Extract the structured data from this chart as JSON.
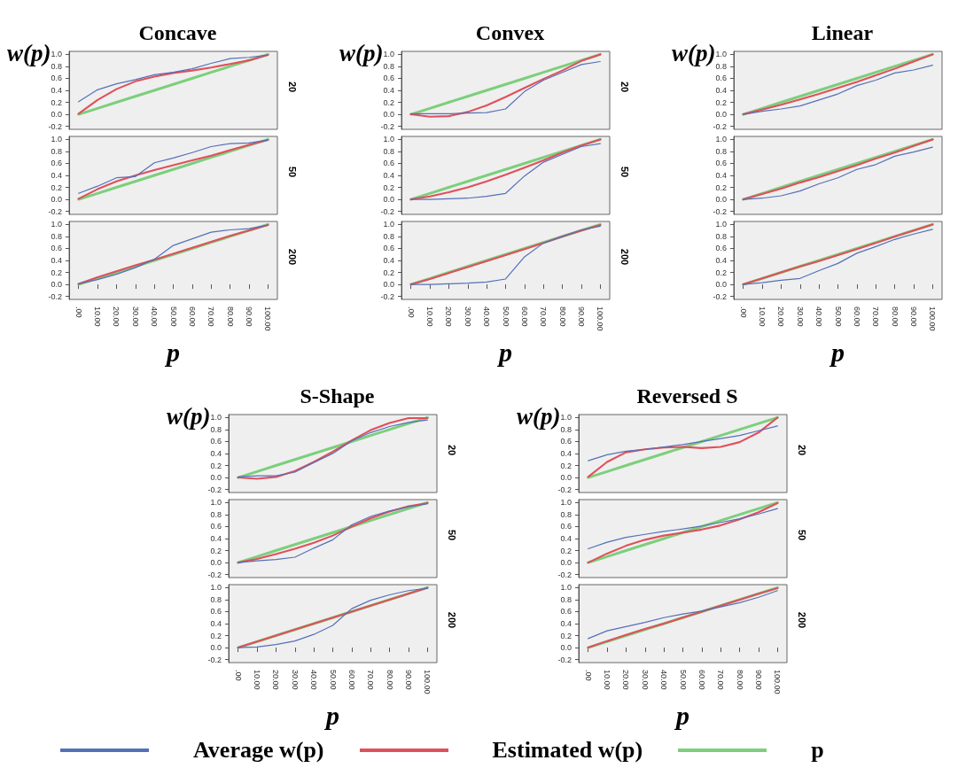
{
  "chart_data": [
    {
      "type": "line",
      "title": "Concave",
      "ylabel": "w(p)",
      "y2label": "20",
      "tick_labels": "y",
      "categories": [
        ".00",
        "10.00",
        "20.00",
        "30.00",
        "40.00",
        "50.00",
        "60.00",
        "70.00",
        "80.00",
        "90.00",
        "100.00"
      ],
      "ylim": [
        -0.25,
        1.05
      ],
      "yticks": [
        {
          "value": -0.2,
          "label": "-0.2"
        },
        {
          "value": 0,
          "label": "0.0"
        },
        0.2,
        0.4,
        0.6,
        0.8,
        {
          "value": 1,
          "label": "1.0"
        }
      ],
      "grid": false,
      "series": [
        {
          "color": "#5470b8",
          "values": [
            0.21,
            0.41,
            0.51,
            0.58,
            0.66,
            0.7,
            0.76,
            0.85,
            0.93,
            0.95,
            0.99
          ]
        },
        {
          "color": "#e0505c",
          "values": [
            0.01,
            0.24,
            0.42,
            0.55,
            0.63,
            0.69,
            0.73,
            0.78,
            0.84,
            0.9,
            0.99
          ]
        },
        {
          "color": "#7ccf7c",
          "values": [
            0,
            0.1,
            0.2,
            0.3,
            0.4,
            0.5,
            0.6,
            0.7,
            0.8,
            0.9,
            1.0
          ]
        }
      ]
    },
    {
      "type": "line",
      "y2label": "50",
      "tick_labels": "y",
      "categories": [
        ".00",
        "10.00",
        "20.00",
        "30.00",
        "40.00",
        "50.00",
        "60.00",
        "70.00",
        "80.00",
        "90.00",
        "100.00"
      ],
      "ylim": [
        -0.25,
        1.05
      ],
      "yticks": [
        {
          "value": -0.2,
          "label": "-0.2"
        },
        {
          "value": 0,
          "label": "0.0"
        },
        0.2,
        0.4,
        0.6,
        0.8,
        {
          "value": 1,
          "label": "1.0"
        }
      ],
      "grid": false,
      "series": [
        {
          "color": "#5470b8",
          "values": [
            0.1,
            0.22,
            0.36,
            0.38,
            0.61,
            0.69,
            0.78,
            0.88,
            0.93,
            0.94,
            0.99
          ]
        },
        {
          "color": "#e0505c",
          "values": [
            0.01,
            0.17,
            0.3,
            0.4,
            0.49,
            0.57,
            0.65,
            0.73,
            0.82,
            0.91,
            0.99
          ]
        },
        {
          "color": "#7ccf7c",
          "values": [
            0,
            0.1,
            0.2,
            0.3,
            0.4,
            0.5,
            0.6,
            0.7,
            0.8,
            0.9,
            1.0
          ]
        }
      ]
    },
    {
      "type": "line",
      "xlabel": "p",
      "y2label": "200",
      "categories": [
        ".00",
        "10.00",
        "20.00",
        "30.00",
        "40.00",
        "50.00",
        "60.00",
        "70.00",
        "80.00",
        "90.00",
        "100.00"
      ],
      "ylim": [
        -0.25,
        1.05
      ],
      "yticks": [
        {
          "value": -0.2,
          "label": "-0.2"
        },
        {
          "value": 0,
          "label": "0.0"
        },
        0.2,
        0.4,
        0.6,
        0.8,
        {
          "value": 1,
          "label": "1.0"
        }
      ],
      "grid": false,
      "series": [
        {
          "color": "#5470b8",
          "values": [
            0.01,
            0.08,
            0.17,
            0.28,
            0.42,
            0.65,
            0.76,
            0.87,
            0.91,
            0.93,
            0.99
          ]
        },
        {
          "color": "#e0505c",
          "values": [
            0.01,
            0.12,
            0.22,
            0.32,
            0.41,
            0.51,
            0.61,
            0.71,
            0.81,
            0.9,
            0.99
          ]
        },
        {
          "color": "#7ccf7c",
          "values": [
            0,
            0.1,
            0.2,
            0.3,
            0.4,
            0.5,
            0.6,
            0.7,
            0.8,
            0.9,
            1.0
          ]
        }
      ]
    },
    {
      "type": "line",
      "title": "Convex",
      "ylabel": "w(p)",
      "y2label": "20",
      "tick_labels": "y",
      "categories": [
        ".00",
        "10.00",
        "20.00",
        "30.00",
        "40.00",
        "50.00",
        "60.00",
        "70.00",
        "80.00",
        "90.00",
        "100.00"
      ],
      "ylim": [
        -0.25,
        1.05
      ],
      "yticks": [
        {
          "value": -0.2,
          "label": "-0.2"
        },
        {
          "value": 0,
          "label": "0.0"
        },
        0.2,
        0.4,
        0.6,
        0.8,
        {
          "value": 1,
          "label": "1.0"
        }
      ],
      "grid": false,
      "series": [
        {
          "color": "#5470b8",
          "values": [
            0.01,
            0.01,
            0.01,
            0.02,
            0.03,
            0.09,
            0.38,
            0.57,
            0.7,
            0.83,
            0.88
          ]
        },
        {
          "color": "#e0505c",
          "values": [
            0.0,
            -0.04,
            -0.03,
            0.04,
            0.15,
            0.29,
            0.44,
            0.59,
            0.73,
            0.89,
            1.0
          ]
        },
        {
          "color": "#7ccf7c",
          "values": [
            0,
            0.1,
            0.2,
            0.3,
            0.4,
            0.5,
            0.6,
            0.7,
            0.8,
            0.9,
            1.0
          ]
        }
      ]
    },
    {
      "type": "line",
      "y2label": "50",
      "tick_labels": "y",
      "categories": [
        ".00",
        "10.00",
        "20.00",
        "30.00",
        "40.00",
        "50.00",
        "60.00",
        "70.00",
        "80.00",
        "90.00",
        "100.00"
      ],
      "ylim": [
        -0.25,
        1.05
      ],
      "yticks": [
        {
          "value": -0.2,
          "label": "-0.2"
        },
        {
          "value": 0,
          "label": "0.0"
        },
        0.2,
        0.4,
        0.6,
        0.8,
        {
          "value": 1,
          "label": "1.0"
        }
      ],
      "grid": false,
      "series": [
        {
          "color": "#5470b8",
          "values": [
            0.0,
            0.0,
            0.01,
            0.02,
            0.05,
            0.1,
            0.39,
            0.62,
            0.75,
            0.88,
            0.93
          ]
        },
        {
          "color": "#e0505c",
          "values": [
            0.0,
            0.05,
            0.12,
            0.2,
            0.3,
            0.41,
            0.53,
            0.65,
            0.78,
            0.9,
            1.0
          ]
        },
        {
          "color": "#7ccf7c",
          "values": [
            0,
            0.1,
            0.2,
            0.3,
            0.4,
            0.5,
            0.6,
            0.7,
            0.8,
            0.9,
            1.0
          ]
        }
      ]
    },
    {
      "type": "line",
      "xlabel": "p",
      "y2label": "200",
      "categories": [
        ".00",
        "10.00",
        "20.00",
        "30.00",
        "40.00",
        "50.00",
        "60.00",
        "70.00",
        "80.00",
        "90.00",
        "100.00"
      ],
      "ylim": [
        -0.25,
        1.05
      ],
      "yticks": [
        {
          "value": -0.2,
          "label": "-0.2"
        },
        {
          "value": 0,
          "label": "0.0"
        },
        0.2,
        0.4,
        0.6,
        0.8,
        {
          "value": 1,
          "label": "1.0"
        }
      ],
      "grid": false,
      "series": [
        {
          "color": "#5470b8",
          "values": [
            0.0,
            0.0,
            0.01,
            0.02,
            0.04,
            0.09,
            0.46,
            0.69,
            0.8,
            0.91,
            0.97
          ]
        },
        {
          "color": "#e0505c",
          "values": [
            0.0,
            0.09,
            0.19,
            0.29,
            0.39,
            0.49,
            0.59,
            0.69,
            0.8,
            0.9,
            0.99
          ]
        },
        {
          "color": "#7ccf7c",
          "values": [
            0,
            0.1,
            0.2,
            0.3,
            0.4,
            0.5,
            0.6,
            0.7,
            0.8,
            0.9,
            1.0
          ]
        }
      ]
    },
    {
      "type": "line",
      "title": "Linear",
      "ylabel": "w(p)",
      "tick_labels": "y",
      "categories": [
        ".00",
        "10.00",
        "20.00",
        "30.00",
        "40.00",
        "50.00",
        "60.00",
        "70.00",
        "80.00",
        "90.00",
        "100.00"
      ],
      "ylim": [
        -0.25,
        1.05
      ],
      "yticks": [
        {
          "value": -0.2,
          "label": "-0.2"
        },
        {
          "value": 0,
          "label": "0.0"
        },
        0.2,
        0.4,
        0.6,
        0.8,
        {
          "value": 1,
          "label": "1.0"
        }
      ],
      "grid": false,
      "series": [
        {
          "color": "#5470b8",
          "values": [
            0.0,
            0.05,
            0.09,
            0.14,
            0.24,
            0.34,
            0.48,
            0.57,
            0.69,
            0.74,
            0.82
          ]
        },
        {
          "color": "#e0505c",
          "values": [
            0.0,
            0.08,
            0.16,
            0.25,
            0.34,
            0.44,
            0.54,
            0.65,
            0.76,
            0.88,
            1.0
          ]
        },
        {
          "color": "#7ccf7c",
          "values": [
            0,
            0.1,
            0.2,
            0.3,
            0.4,
            0.5,
            0.6,
            0.7,
            0.8,
            0.9,
            1.0
          ]
        }
      ]
    },
    {
      "type": "line",
      "tick_labels": "y",
      "categories": [
        ".00",
        "10.00",
        "20.00",
        "30.00",
        "40.00",
        "50.00",
        "60.00",
        "70.00",
        "80.00",
        "90.00",
        "100.00"
      ],
      "ylim": [
        -0.25,
        1.05
      ],
      "yticks": [
        {
          "value": -0.2,
          "label": "-0.2"
        },
        {
          "value": 0,
          "label": "0.0"
        },
        0.2,
        0.4,
        0.6,
        0.8,
        {
          "value": 1,
          "label": "1.0"
        }
      ],
      "grid": false,
      "series": [
        {
          "color": "#5470b8",
          "values": [
            0.0,
            0.02,
            0.06,
            0.14,
            0.26,
            0.36,
            0.5,
            0.58,
            0.72,
            0.79,
            0.87
          ]
        },
        {
          "color": "#e0505c",
          "values": [
            0.0,
            0.09,
            0.18,
            0.28,
            0.37,
            0.47,
            0.57,
            0.68,
            0.78,
            0.89,
            1.0
          ]
        },
        {
          "color": "#7ccf7c",
          "values": [
            0,
            0.1,
            0.2,
            0.3,
            0.4,
            0.5,
            0.6,
            0.7,
            0.8,
            0.9,
            1.0
          ]
        }
      ]
    },
    {
      "type": "line",
      "xlabel": "p",
      "categories": [
        ".00",
        "10.00",
        "20.00",
        "30.00",
        "40.00",
        "50.00",
        "60.00",
        "70.00",
        "80.00",
        "90.00",
        "100.00"
      ],
      "ylim": [
        -0.25,
        1.05
      ],
      "yticks": [
        {
          "value": -0.2,
          "label": "-0.2"
        },
        {
          "value": 0,
          "label": "0.0"
        },
        0.2,
        0.4,
        0.6,
        0.8,
        {
          "value": 1,
          "label": "1.0"
        }
      ],
      "grid": false,
      "series": [
        {
          "color": "#5470b8",
          "values": [
            0.0,
            0.03,
            0.07,
            0.1,
            0.23,
            0.35,
            0.52,
            0.63,
            0.75,
            0.84,
            0.92
          ]
        },
        {
          "color": "#e0505c",
          "values": [
            0.0,
            0.1,
            0.2,
            0.3,
            0.39,
            0.49,
            0.59,
            0.69,
            0.8,
            0.9,
            1.0
          ]
        },
        {
          "color": "#7ccf7c",
          "values": [
            0,
            0.1,
            0.2,
            0.3,
            0.4,
            0.5,
            0.6,
            0.7,
            0.8,
            0.9,
            1.0
          ]
        }
      ]
    },
    {
      "type": "line",
      "title": "S-Shape",
      "ylabel": "w(p)",
      "y2label": "20",
      "tick_labels": "y",
      "categories": [
        ".00",
        "10.00",
        "20.00",
        "30.00",
        "40.00",
        "50.00",
        "60.00",
        "70.00",
        "80.00",
        "90.00",
        "100.00"
      ],
      "ylim": [
        -0.25,
        1.05
      ],
      "yticks": [
        {
          "value": -0.2,
          "label": "-0.2"
        },
        {
          "value": 0,
          "label": "0.0"
        },
        0.2,
        0.4,
        0.6,
        0.8,
        {
          "value": 1,
          "label": "1.0"
        }
      ],
      "grid": false,
      "series": [
        {
          "color": "#5470b8",
          "values": [
            0.01,
            0.03,
            0.03,
            0.09,
            0.25,
            0.4,
            0.61,
            0.75,
            0.85,
            0.92,
            0.96
          ]
        },
        {
          "color": "#e0505c",
          "values": [
            0.0,
            -0.02,
            0.01,
            0.11,
            0.26,
            0.43,
            0.62,
            0.79,
            0.91,
            0.99,
            0.99
          ]
        },
        {
          "color": "#7ccf7c",
          "values": [
            0,
            0.1,
            0.2,
            0.3,
            0.4,
            0.5,
            0.6,
            0.7,
            0.8,
            0.9,
            1.0
          ]
        }
      ]
    },
    {
      "type": "line",
      "y2label": "50",
      "tick_labels": "y",
      "categories": [
        ".00",
        "10.00",
        "20.00",
        "30.00",
        "40.00",
        "50.00",
        "60.00",
        "70.00",
        "80.00",
        "90.00",
        "100.00"
      ],
      "ylim": [
        -0.25,
        1.05
      ],
      "yticks": [
        {
          "value": -0.2,
          "label": "-0.2"
        },
        {
          "value": 0,
          "label": "0.0"
        },
        0.2,
        0.4,
        0.6,
        0.8,
        {
          "value": 1,
          "label": "1.0"
        }
      ],
      "grid": false,
      "series": [
        {
          "color": "#5470b8",
          "values": [
            0.0,
            0.03,
            0.05,
            0.09,
            0.24,
            0.38,
            0.63,
            0.77,
            0.86,
            0.93,
            0.98
          ]
        },
        {
          "color": "#e0505c",
          "values": [
            0.0,
            0.06,
            0.14,
            0.23,
            0.33,
            0.45,
            0.6,
            0.74,
            0.85,
            0.94,
            0.99
          ]
        },
        {
          "color": "#7ccf7c",
          "values": [
            0,
            0.1,
            0.2,
            0.3,
            0.4,
            0.5,
            0.6,
            0.7,
            0.8,
            0.9,
            1.0
          ]
        }
      ]
    },
    {
      "type": "line",
      "xlabel": "p",
      "y2label": "200",
      "categories": [
        ".00",
        "10.00",
        "20.00",
        "30.00",
        "40.00",
        "50.00",
        "60.00",
        "70.00",
        "80.00",
        "90.00",
        "100.00"
      ],
      "ylim": [
        -0.25,
        1.05
      ],
      "yticks": [
        {
          "value": -0.2,
          "label": "-0.2"
        },
        {
          "value": 0,
          "label": "0.0"
        },
        0.2,
        0.4,
        0.6,
        0.8,
        {
          "value": 1,
          "label": "1.0"
        }
      ],
      "grid": false,
      "series": [
        {
          "color": "#5470b8",
          "values": [
            0.0,
            0.01,
            0.05,
            0.11,
            0.22,
            0.37,
            0.65,
            0.79,
            0.88,
            0.95,
            0.99
          ]
        },
        {
          "color": "#e0505c",
          "values": [
            0.0,
            0.1,
            0.2,
            0.3,
            0.4,
            0.5,
            0.6,
            0.7,
            0.8,
            0.9,
            1.0
          ]
        },
        {
          "color": "#7ccf7c",
          "values": [
            0,
            0.1,
            0.2,
            0.3,
            0.4,
            0.5,
            0.6,
            0.7,
            0.8,
            0.9,
            1.0
          ]
        }
      ]
    },
    {
      "type": "line",
      "title": "Reversed S",
      "ylabel": "w(p)",
      "y2label": "20",
      "tick_labels": "y",
      "categories": [
        ".00",
        "10.00",
        "20.00",
        "30.00",
        "40.00",
        "50.00",
        "60.00",
        "70.00",
        "80.00",
        "90.00",
        "100.00"
      ],
      "ylim": [
        -0.25,
        1.05
      ],
      "yticks": [
        {
          "value": -0.2,
          "label": "-0.2"
        },
        {
          "value": 0,
          "label": "0.0"
        },
        0.2,
        0.4,
        0.6,
        0.8,
        {
          "value": 1,
          "label": "1.0"
        }
      ],
      "grid": false,
      "series": [
        {
          "color": "#5470b8",
          "values": [
            0.28,
            0.38,
            0.44,
            0.47,
            0.51,
            0.55,
            0.6,
            0.65,
            0.7,
            0.78,
            0.86
          ]
        },
        {
          "color": "#e0505c",
          "values": [
            0.01,
            0.26,
            0.42,
            0.47,
            0.5,
            0.51,
            0.49,
            0.51,
            0.59,
            0.75,
            1.0
          ]
        },
        {
          "color": "#7ccf7c",
          "values": [
            0,
            0.1,
            0.2,
            0.3,
            0.4,
            0.5,
            0.6,
            0.7,
            0.8,
            0.9,
            1.0
          ]
        }
      ]
    },
    {
      "type": "line",
      "y2label": "50",
      "tick_labels": "y",
      "categories": [
        ".00",
        "10.00",
        "20.00",
        "30.00",
        "40.00",
        "50.00",
        "60.00",
        "70.00",
        "80.00",
        "90.00",
        "100.00"
      ],
      "ylim": [
        -0.25,
        1.05
      ],
      "yticks": [
        {
          "value": -0.2,
          "label": "-0.2"
        },
        {
          "value": 0,
          "label": "0.0"
        },
        0.2,
        0.4,
        0.6,
        0.8,
        {
          "value": 1,
          "label": "1.0"
        }
      ],
      "grid": false,
      "series": [
        {
          "color": "#5470b8",
          "values": [
            0.23,
            0.34,
            0.42,
            0.47,
            0.52,
            0.56,
            0.61,
            0.67,
            0.73,
            0.81,
            0.9
          ]
        },
        {
          "color": "#e0505c",
          "values": [
            0.0,
            0.15,
            0.28,
            0.38,
            0.45,
            0.5,
            0.55,
            0.62,
            0.72,
            0.84,
            0.99
          ]
        },
        {
          "color": "#7ccf7c",
          "values": [
            0,
            0.1,
            0.2,
            0.3,
            0.4,
            0.5,
            0.6,
            0.7,
            0.8,
            0.9,
            1.0
          ]
        }
      ]
    },
    {
      "type": "line",
      "xlabel": "p",
      "y2label": "200",
      "legend": "bottom",
      "categories": [
        ".00",
        "10.00",
        "20.00",
        "30.00",
        "40.00",
        "50.00",
        "60.00",
        "70.00",
        "80.00",
        "90.00",
        "100.00"
      ],
      "ylim": [
        -0.25,
        1.05
      ],
      "yticks": [
        {
          "value": -0.2,
          "label": "-0.2"
        },
        {
          "value": 0,
          "label": "0.0"
        },
        0.2,
        0.4,
        0.6,
        0.8,
        {
          "value": 1,
          "label": "1.0"
        }
      ],
      "grid": false,
      "series": [
        {
          "name": "Average w(p)",
          "color": "#5470b8",
          "values": [
            0.15,
            0.28,
            0.35,
            0.42,
            0.5,
            0.56,
            0.61,
            0.68,
            0.75,
            0.84,
            0.95
          ]
        },
        {
          "name": "Estimated w(p)",
          "color": "#e0505c",
          "values": [
            0.0,
            0.11,
            0.21,
            0.31,
            0.4,
            0.5,
            0.6,
            0.7,
            0.8,
            0.9,
            0.99
          ]
        },
        {
          "name": "p",
          "color": "#7ccf7c",
          "values": [
            0,
            0.1,
            0.2,
            0.3,
            0.4,
            0.5,
            0.6,
            0.7,
            0.8,
            0.9,
            1.0
          ]
        }
      ]
    }
  ]
}
